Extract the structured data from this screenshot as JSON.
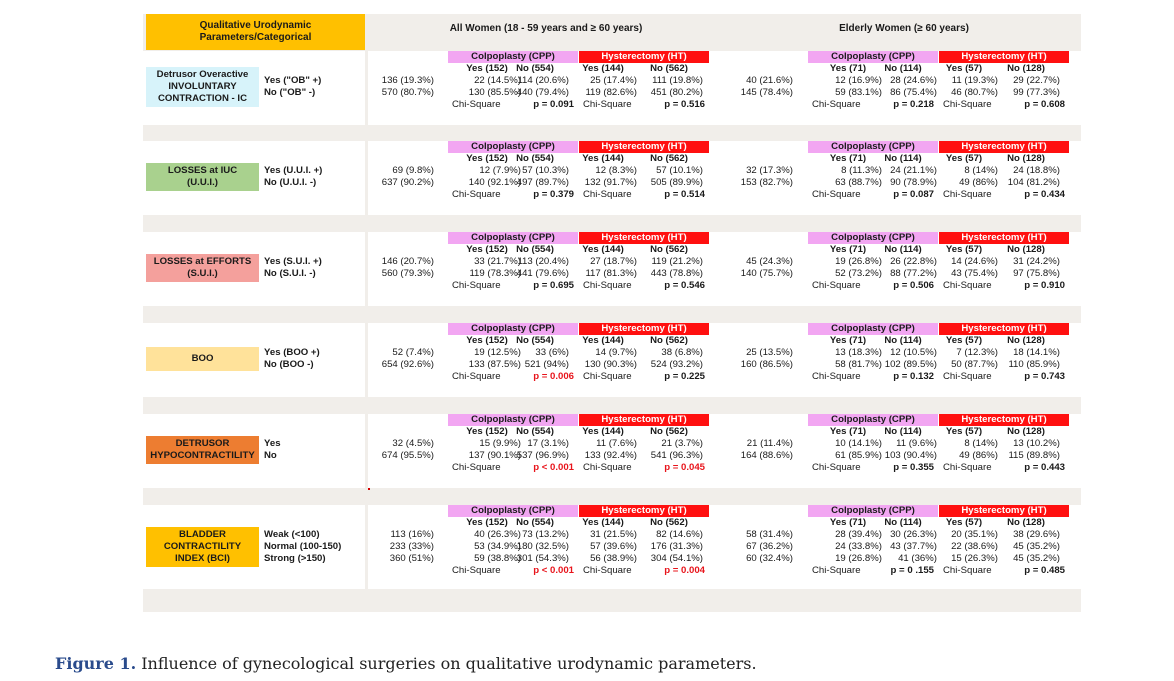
{
  "header": {
    "title_cell": "Qualitative Urodynamic Parameters/Categorical",
    "all_women": "All Women (18 - 59 years and ≥ 60 years)",
    "elderly_women": "Elderly Women (≥ 60 years)"
  },
  "group_labels": {
    "cpp": "Colpoplasty (CPP)",
    "ht": "Hysterectomy (HT)",
    "chi": "Chi-Square"
  },
  "colors": {
    "title_bg": "#ffc000",
    "figure_bg": "#f1eeea",
    "cpp_bg": "#f2a6f2",
    "ht_bg": "#ff1010",
    "detrusor_bg": "#d7f3fa",
    "losses_iuc_bg": "#a9d18e",
    "losses_efforts_bg": "#f4a09c",
    "boo_bg": "#ffe29a",
    "hypocontract_bg": "#ed7d31",
    "bci_bg": "#ffc000",
    "significant": "#e8141b"
  },
  "rows": [
    {
      "label": "Detrusor Overactive INVOLUNTARY CONTRACTION - IC",
      "label_lines": [
        "Detrusor Overactive",
        "INVOLUNTARY",
        "CONTRACTION - IC"
      ],
      "cats": [
        "Yes (\"OB\" +)",
        "No (\"OB\"  -)"
      ],
      "all_totals": [
        "136 (19.3%)",
        "570 (80.7%)"
      ],
      "all_head": [
        "Yes (152)",
        "No (554)",
        "Yes (144)",
        "No (562)"
      ],
      "all_vals": [
        [
          "22 (14.5%)",
          "114 (20.6%)",
          "25 (17.4%)",
          "111 (19.8%)"
        ],
        [
          "130 (85.5%)",
          "440 (79.4%)",
          "119 (82.6%)",
          "451 (80.2%)"
        ]
      ],
      "all_p": [
        "p = 0.091",
        "p = 0.516"
      ],
      "all_p_sig": [
        false,
        false
      ],
      "eld_totals": [
        "40 (21.6%)",
        "145 (78.4%)"
      ],
      "eld_head": [
        "Yes (71)",
        "No (114)",
        "Yes (57)",
        "No (128)"
      ],
      "eld_vals": [
        [
          "12 (16.9%)",
          "28 (24.6%)",
          "11 (19.3%)",
          "29 (22.7%)"
        ],
        [
          "59 (83.1%)",
          "86 (75.4%)",
          "46 (80.7%)",
          "99 (77.3%)"
        ]
      ],
      "eld_p": [
        "p = 0.218",
        "p = 0.608"
      ]
    },
    {
      "label": "LOSSES at IUC (U.U.I.)",
      "label_lines": [
        "LOSSES at IUC",
        "(U.U.I.)"
      ],
      "cats": [
        "Yes (U.U.I. +)",
        "No (U.U.I.  -)"
      ],
      "all_totals": [
        "69 (9.8%)",
        "637 (90.2%)"
      ],
      "all_head": [
        "Yes (152)",
        "No (554)",
        "Yes (144)",
        "No (562)"
      ],
      "all_vals": [
        [
          "12 (7.9%)",
          "57 (10.3%)",
          "12 (8.3%)",
          "57 (10.1%)"
        ],
        [
          "140 (92.1%)",
          "497 (89.7%)",
          "132 (91.7%)",
          "505 (89.9%)"
        ]
      ],
      "all_p": [
        "p = 0.379",
        "p = 0.514"
      ],
      "all_p_sig": [
        false,
        false
      ],
      "eld_totals": [
        "32 (17.3%)",
        "153 (82.7%)"
      ],
      "eld_head": [
        "Yes (71)",
        "No (114)",
        "Yes (57)",
        "No (128)"
      ],
      "eld_vals": [
        [
          "8 (11.3%)",
          "24 (21.1%)",
          "8 (14%)",
          "24 (18.8%)"
        ],
        [
          "63 (88.7%)",
          "90 (78.9%)",
          "49 (86%)",
          "104 (81.2%)"
        ]
      ],
      "eld_p": [
        "p = 0.087",
        "p = 0.434"
      ]
    },
    {
      "label": "LOSSES at EFFORTS (S.U.I.)",
      "label_lines": [
        "LOSSES at EFFORTS",
        "(S.U.I.)"
      ],
      "cats": [
        "Yes (S.U.I. +)",
        "No (S.U.I.  -)"
      ],
      "all_totals": [
        "146 (20.7%)",
        "560 (79.3%)"
      ],
      "all_head": [
        "Yes (152)",
        "No (554)",
        "Yes (144)",
        "No (562)"
      ],
      "all_vals": [
        [
          "33 (21.7%)",
          "113 (20.4%)",
          "27 (18.7%)",
          "119 (21.2%)"
        ],
        [
          "119 (78.3%)",
          "441 (79.6%)",
          "117 (81.3%)",
          "443 (78.8%)"
        ]
      ],
      "all_p": [
        "p = 0.695",
        "p = 0.546"
      ],
      "all_p_sig": [
        false,
        false
      ],
      "eld_totals": [
        "45 (24.3%)",
        "140 (75.7%)"
      ],
      "eld_head": [
        "Yes (71)",
        "No (114)",
        "Yes (57)",
        "No (128)"
      ],
      "eld_vals": [
        [
          "19 (26.8%)",
          "26 (22.8%)",
          "14 (24.6%)",
          "31 (24.2%)"
        ],
        [
          "52 (73.2%)",
          "88 (77.2%)",
          "43 (75.4%)",
          "97 (75.8%)"
        ]
      ],
      "eld_p": [
        "p = 0.506",
        "p = 0.910"
      ]
    },
    {
      "label": "BOO",
      "label_lines": [
        "BOO"
      ],
      "cats": [
        "Yes (BOO +)",
        "No (BOO  -)"
      ],
      "all_totals": [
        "52 (7.4%)",
        "654 (92.6%)"
      ],
      "all_head": [
        "Yes (152)",
        "No (554)",
        "Yes (144)",
        "No (562)"
      ],
      "all_vals": [
        [
          "19 (12.5%)",
          "33 (6%)",
          "14 (9.7%)",
          "38 (6.8%)"
        ],
        [
          "133 (87.5%)",
          "521 (94%)",
          "130 (90.3%)",
          "524 (93.2%)"
        ]
      ],
      "all_p": [
        "p = 0.006",
        "p = 0.225"
      ],
      "all_p_sig": [
        true,
        false
      ],
      "eld_totals": [
        "25 (13.5%)",
        "160 (86.5%)"
      ],
      "eld_head": [
        "Yes (71)",
        "No (114)",
        "Yes (57)",
        "No (128)"
      ],
      "eld_vals": [
        [
          "13 (18.3%)",
          "12 (10.5%)",
          "7 (12.3%)",
          "18 (14.1%)"
        ],
        [
          "58 (81.7%)",
          "102 (89.5%)",
          "50 (87.7%)",
          "110 (85.9%)"
        ]
      ],
      "eld_p": [
        "p = 0.132",
        "p = 0.743"
      ]
    },
    {
      "label": "DETRUSOR HYPOCONTRACTILITY",
      "label_lines": [
        "DETRUSOR",
        "HYPOCONTRACTILITY"
      ],
      "cats": [
        "Yes",
        "No"
      ],
      "all_totals": [
        "32 (4.5%)",
        "674 (95.5%)"
      ],
      "all_head": [
        "Yes (152)",
        "No (554)",
        "Yes (144)",
        "No (562)"
      ],
      "all_vals": [
        [
          "15 (9.9%)",
          "17 (3.1%)",
          "11 (7.6%)",
          "21 (3.7%)"
        ],
        [
          "137 (90.1%)",
          "537 (96.9%)",
          "133 (92.4%)",
          "541 (96.3%)"
        ]
      ],
      "all_p": [
        "p < 0.001",
        "p = 0.045"
      ],
      "all_p_sig": [
        true,
        true
      ],
      "eld_totals": [
        "21 (11.4%)",
        "164 (88.6%)"
      ],
      "eld_head": [
        "Yes (71)",
        "No (114)",
        "Yes (57)",
        "No (128)"
      ],
      "eld_vals": [
        [
          "10 (14.1%)",
          "11 (9.6%)",
          "8 (14%)",
          "13 (10.2%)"
        ],
        [
          "61 (85.9%)",
          "103 (90.4%)",
          "49 (86%)",
          "115 (89.8%)"
        ]
      ],
      "eld_p": [
        "p = 0.355",
        "p = 0.443"
      ]
    },
    {
      "label": "BLADDER CONTRACTILITY INDEX (BCI)",
      "label_lines": [
        "BLADDER",
        "CONTRACTILITY",
        "INDEX (BCI)"
      ],
      "cats": [
        "Weak (<100)",
        "Normal (100-150)",
        "Strong (>150)"
      ],
      "all_totals": [
        "113 (16%)",
        "233 (33%)",
        "360 (51%)"
      ],
      "all_head": [
        "Yes (152)",
        "No (554)",
        "Yes (144)",
        "No (562)"
      ],
      "all_vals": [
        [
          "40 (26.3%)",
          "73 (13.2%)",
          "31 (21.5%)",
          "82 (14.6%)"
        ],
        [
          "53 (34.9%)",
          "180 (32.5%)",
          "57 (39.6%)",
          "176 (31.3%)"
        ],
        [
          "59 (38.8%)",
          "301 (54.3%)",
          "56 (38.9%)",
          "304 (54.1%)"
        ]
      ],
      "all_p": [
        "p < 0.001",
        "p = 0.004"
      ],
      "all_p_sig": [
        true,
        true
      ],
      "eld_totals": [
        "58 (31.4%)",
        "67 (36.2%)",
        "60 (32.4%)"
      ],
      "eld_head": [
        "Yes (71)",
        "No (114)",
        "Yes (57)",
        "No (128)"
      ],
      "eld_vals": [
        [
          "28 (39.4%)",
          "30 (26.3%)",
          "20 (35.1%)",
          "38 (29.6%)"
        ],
        [
          "24 (33.8%)",
          "43 (37.7%)",
          "22 (38.6%)",
          "45 (35.2%)"
        ],
        [
          "19 (26.8%)",
          "41 (36%)",
          "15 (26.3%)",
          "45 (35.2%)"
        ]
      ],
      "eld_p": [
        "p = 0 .155",
        "p = 0.485"
      ]
    }
  ],
  "caption": {
    "label": "Figure 1.",
    "text": " Influence of gynecological surgeries on qualitative urodynamic parameters."
  }
}
